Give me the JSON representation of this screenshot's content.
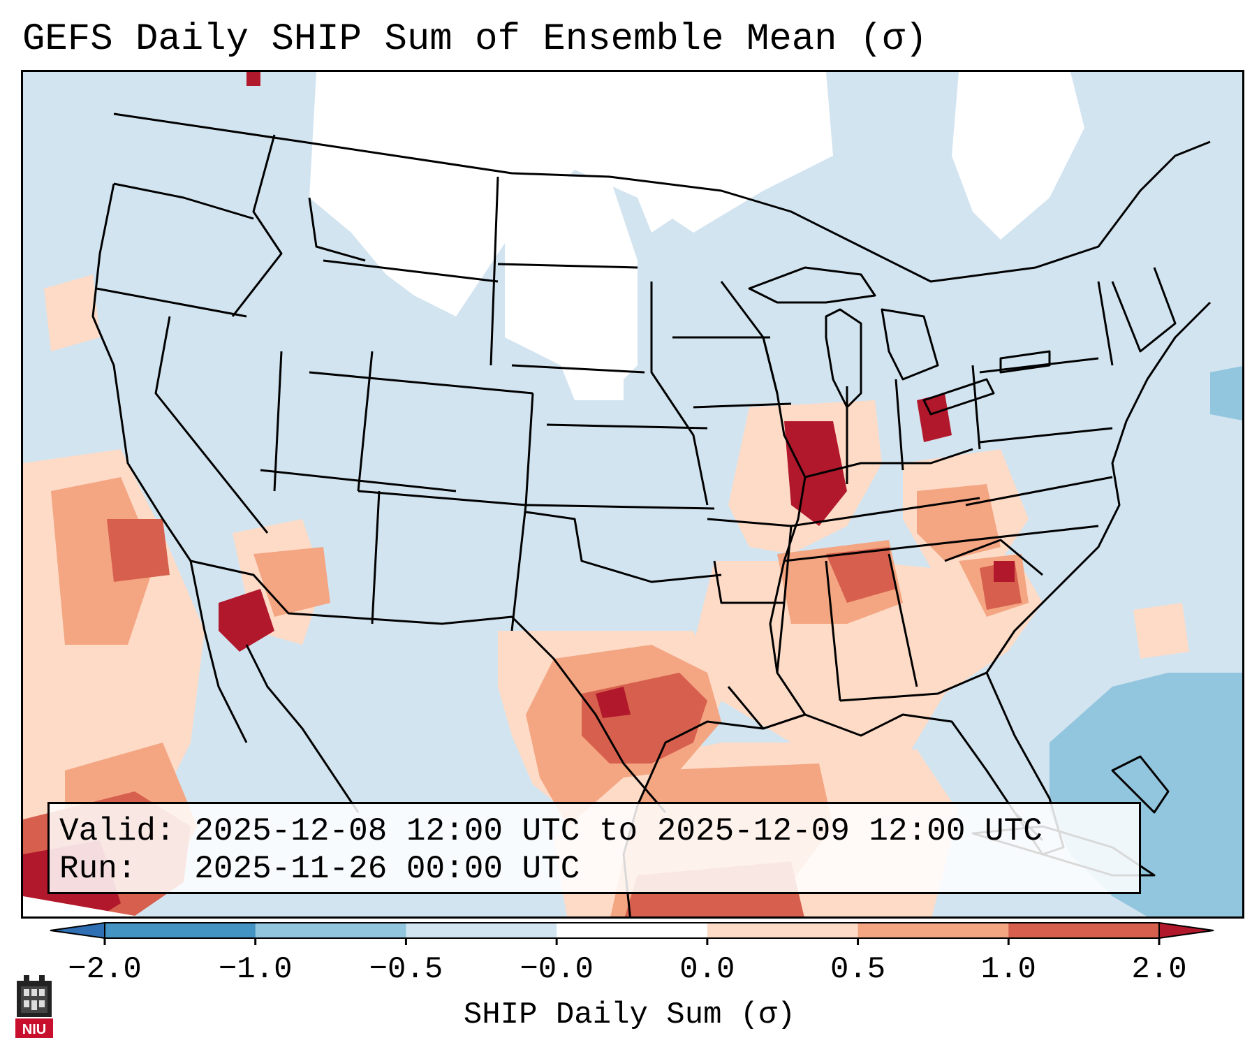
{
  "title": "GEFS Daily SHIP Sum of Ensemble Mean (σ)",
  "info": {
    "valid_label": "Valid:",
    "valid_value": "2025-12-08 12:00 UTC to 2025-12-09 12:00 UTC",
    "run_label": "Run:",
    "run_value": "2025-11-26 00:00 UTC"
  },
  "colorbar": {
    "label": "SHIP Daily Sum (σ)",
    "ticks": [
      "−2.0",
      "−1.0",
      "−0.5",
      "−0.0",
      "0.0",
      "0.5",
      "1.0",
      "2.0"
    ],
    "bins": [
      {
        "range": "< -2.0",
        "color": "#2f6fb4"
      },
      {
        "range": "-2.0 to -1.0",
        "color": "#4393c3"
      },
      {
        "range": "-1.0 to -0.5",
        "color": "#92c5de"
      },
      {
        "range": "-0.5 to -0.0",
        "color": "#d1e5f0"
      },
      {
        "range": "-0.0 to 0.0",
        "color": "#ffffff"
      },
      {
        "range": "0.0 to 0.5",
        "color": "#fddbc7"
      },
      {
        "range": "0.5 to 1.0",
        "color": "#f4a582"
      },
      {
        "range": "1.0 to 2.0",
        "color": "#d6604d"
      },
      {
        "range": "> 2.0",
        "color": "#b2182b"
      }
    ]
  },
  "logo": {
    "text": "NIU",
    "name": "Northern Illinois University"
  },
  "map": {
    "region": "Contiguous United States, northern Mexico, Gulf of Mexico",
    "colors": {
      "neutral": "#ffffff",
      "neg_small": "#d1e5f0",
      "neg_mid": "#92c5de",
      "pos_small": "#fddbc7",
      "pos_mid": "#f4a582",
      "pos_large": "#d6604d",
      "pos_extreme": "#b2182b",
      "border": "#000000"
    }
  }
}
